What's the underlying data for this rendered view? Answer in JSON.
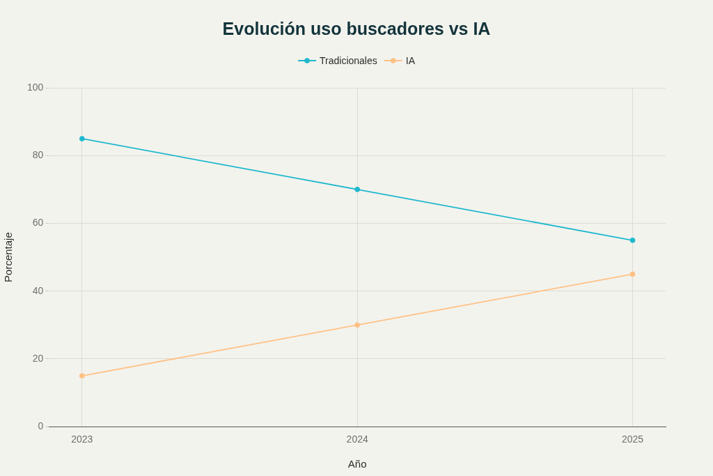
{
  "chart_data": {
    "type": "line",
    "title": "Evolución uso buscadores vs IA",
    "xlabel": "Año",
    "ylabel": "Porcentaje",
    "x": [
      2023,
      2024,
      2025
    ],
    "xlim": [
      2022.88,
      2025.12
    ],
    "xticks": [
      2023,
      2024,
      2025
    ],
    "ylim": [
      0,
      100
    ],
    "yticks": [
      0,
      20,
      40,
      60,
      80,
      100
    ],
    "series": [
      {
        "name": "Tradicionales",
        "color": "#1fb8cd",
        "values": [
          85,
          70,
          55
        ]
      },
      {
        "name": "IA",
        "color": "#ffc185",
        "values": [
          15,
          30,
          45
        ]
      }
    ],
    "grid": true,
    "legend": "top",
    "marker": "circle",
    "line_style": "solid"
  }
}
